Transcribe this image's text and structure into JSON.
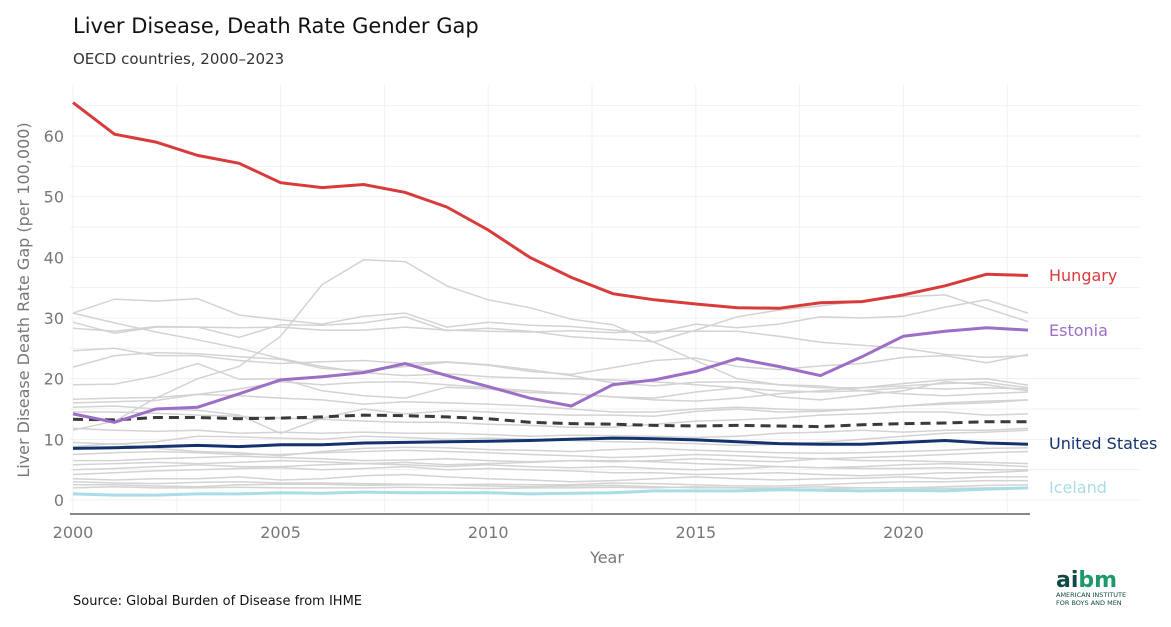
{
  "chart_data": {
    "type": "line",
    "title": "Liver Disease, Death Rate Gender Gap",
    "subtitle": "OECD countries, 2000–2023",
    "xlabel": "Year",
    "ylabel": "Liver Disease Death Rate Gap (per 100,000)",
    "xlim": [
      2000,
      2023
    ],
    "ylim": [
      -2.3,
      67
    ],
    "grid": true,
    "x_ticks": [
      "2000",
      "2005",
      "2010",
      "2015",
      "2020"
    ],
    "y_ticks": [
      "0",
      "10",
      "20",
      "30",
      "40",
      "50",
      "60"
    ],
    "x": [
      2000,
      2001,
      2002,
      2003,
      2004,
      2005,
      2006,
      2007,
      2008,
      2009,
      2010,
      2011,
      2012,
      2013,
      2014,
      2015,
      2016,
      2017,
      2018,
      2019,
      2020,
      2021,
      2022,
      2023
    ],
    "highlighted_series": [
      {
        "name": "Hungary",
        "color": "#d93b3b",
        "values": [
          65.5,
          60.3,
          59.0,
          56.8,
          55.5,
          52.3,
          51.5,
          52.0,
          50.7,
          48.3,
          44.5,
          40.0,
          36.7,
          34.0,
          33.0,
          32.3,
          31.7,
          31.6,
          32.5,
          32.7,
          33.8,
          35.3,
          37.2,
          37.0
        ]
      },
      {
        "name": "Estonia",
        "color": "#9b6fc6",
        "values": [
          14.2,
          12.8,
          15.0,
          15.3,
          17.5,
          19.8,
          20.3,
          21.0,
          22.5,
          20.5,
          18.7,
          16.8,
          15.5,
          19.0,
          19.8,
          21.2,
          23.3,
          22.0,
          20.5,
          23.6,
          27.0,
          27.8,
          28.4,
          28.0
        ]
      },
      {
        "name": "United States",
        "color": "#13336e",
        "values": [
          8.5,
          8.6,
          8.8,
          9.0,
          8.8,
          9.1,
          9.1,
          9.4,
          9.5,
          9.6,
          9.7,
          9.8,
          10.0,
          10.2,
          10.1,
          9.9,
          9.6,
          9.3,
          9.2,
          9.2,
          9.5,
          9.8,
          9.4,
          9.2
        ]
      },
      {
        "name": "Iceland",
        "color": "#a8dde8",
        "values": [
          1.0,
          0.8,
          0.8,
          1.0,
          1.0,
          1.2,
          1.1,
          1.3,
          1.2,
          1.2,
          1.2,
          1.0,
          1.1,
          1.2,
          1.5,
          1.5,
          1.5,
          1.7,
          1.6,
          1.5,
          1.6,
          1.5,
          1.8,
          2.0
        ]
      }
    ],
    "average_series": {
      "color": "#3a3a3a",
      "style": "dashed",
      "values": [
        13.3,
        13.2,
        13.6,
        13.6,
        13.4,
        13.5,
        13.7,
        14.0,
        13.9,
        13.7,
        13.4,
        12.8,
        12.6,
        12.5,
        12.3,
        12.2,
        12.3,
        12.2,
        12.1,
        12.4,
        12.6,
        12.7,
        12.9,
        12.9
      ]
    },
    "background_series_color": "#d3d3d3",
    "background_series": [
      [
        30.8,
        33.1,
        32.8,
        33.2,
        30.5,
        29.7,
        29.0,
        30.3,
        30.8,
        28.5,
        29.3,
        28.8,
        28.6,
        28.0,
        27.5,
        29.0,
        28.4,
        29.0,
        30.2,
        30.0,
        30.3,
        31.8,
        33.0,
        30.8
      ],
      [
        30.8,
        29.2,
        27.7,
        26.4,
        25.0,
        23.3,
        22.0,
        21.0,
        20.5,
        20.8,
        20.3,
        20.1,
        20.0,
        19.8,
        19.5,
        19.0,
        18.5,
        18.0,
        17.8,
        18.0,
        18.5,
        18.3,
        18.5,
        18.3
      ],
      [
        29.3,
        27.5,
        28.5,
        28.5,
        26.8,
        28.9,
        28.8,
        29.2,
        30.2,
        27.9,
        28.3,
        27.8,
        26.9,
        26.5,
        26.1,
        28.0,
        30.2,
        31.3,
        32.0,
        32.8,
        33.5,
        33.8,
        31.6,
        29.4
      ],
      [
        28.3,
        27.8,
        28.6,
        28.5,
        28.4,
        28.5,
        28.0,
        28.0,
        28.5,
        28.0,
        27.8,
        27.7,
        27.9,
        27.6,
        27.8,
        27.8,
        27.8,
        27.0,
        26.0,
        25.5,
        25.0,
        24.0,
        23.5,
        23.8
      ],
      [
        24.6,
        25.0,
        23.8,
        23.8,
        23.0,
        22.5,
        22.8,
        23.0,
        22.5,
        22.8,
        22.3,
        21.5,
        20.5,
        19.3,
        18.8,
        19.4,
        19.5,
        19.0,
        18.5,
        18.5,
        18.8,
        19.2,
        19.4,
        18.5
      ],
      [
        21.9,
        23.8,
        24.3,
        24.1,
        23.6,
        23.2,
        21.7,
        21.3,
        22.0,
        22.7,
        22.2,
        21.2,
        20.7,
        21.8,
        23.0,
        23.4,
        22.0,
        21.5,
        22.1,
        22.5,
        23.5,
        23.8,
        22.6,
        24.0
      ],
      [
        19.0,
        19.1,
        20.4,
        22.5,
        19.9,
        20.0,
        18.0,
        17.2,
        16.8,
        18.6,
        18.3,
        17.7,
        17.5,
        17.0,
        16.8,
        17.8,
        18.5,
        17.0,
        16.5,
        17.3,
        18.0,
        19.5,
        19.0,
        18.0
      ],
      [
        16.6,
        16.8,
        16.9,
        17.4,
        18.3,
        19.5,
        19.0,
        19.4,
        19.5,
        19.0,
        18.5,
        18.0,
        17.5,
        17.0,
        16.5,
        16.3,
        16.8,
        17.5,
        18.0,
        18.5,
        19.2,
        19.8,
        20.0,
        18.9
      ],
      [
        16.0,
        16.2,
        16.4,
        17.4,
        17.2,
        16.8,
        16.5,
        15.8,
        16.2,
        16.0,
        15.8,
        15.5,
        15.0,
        14.5,
        14.5,
        15.0,
        15.3,
        15.0,
        14.8,
        15.0,
        15.5,
        16.0,
        16.3,
        16.5
      ],
      [
        11.5,
        13.0,
        16.8,
        20.0,
        22.0,
        27.0,
        35.5,
        39.6,
        39.3,
        35.3,
        33.0,
        31.7,
        29.8,
        28.9,
        26.0,
        23.0,
        20.0,
        19.0,
        18.8,
        18.0,
        17.5,
        17.2,
        17.5,
        17.8
      ],
      [
        15.3,
        15.5,
        15.0,
        14.8,
        14.0,
        11.0,
        13.5,
        15.0,
        14.2,
        14.7,
        14.5,
        14.2,
        14.0,
        14.0,
        13.8,
        14.6,
        15.0,
        14.5,
        14.6,
        15.0,
        15.5,
        15.8,
        16.0,
        16.5
      ],
      [
        14.5,
        14.5,
        14.3,
        14.0,
        13.8,
        13.5,
        13.3,
        13.0,
        12.8,
        12.8,
        12.5,
        12.3,
        12.0,
        12.0,
        12.5,
        13.0,
        13.2,
        13.5,
        14.0,
        14.2,
        14.5,
        14.5,
        14.0,
        14.2
      ],
      [
        11.8,
        11.5,
        11.3,
        11.5,
        11.0,
        11.2,
        11.0,
        11.2,
        11.0,
        11.0,
        10.8,
        10.5,
        10.7,
        10.6,
        10.5,
        10.3,
        10.5,
        11.0,
        11.2,
        11.5,
        11.2,
        11.5,
        11.5,
        11.8
      ],
      [
        9.5,
        9.2,
        9.6,
        10.5,
        10.4,
        10.2,
        10.0,
        10.5,
        10.3,
        10.0,
        10.2,
        10.0,
        9.8,
        9.6,
        9.5,
        9.3,
        9.0,
        9.2,
        9.5,
        10.0,
        10.5,
        11.0,
        11.2,
        11.5
      ],
      [
        8.8,
        9.3,
        8.5,
        8.0,
        7.8,
        7.3,
        8.0,
        8.5,
        8.7,
        8.6,
        8.3,
        8.2,
        8.0,
        8.3,
        8.5,
        8.2,
        8.0,
        7.8,
        7.7,
        7.8,
        8.0,
        8.2,
        8.5,
        8.6
      ],
      [
        7.5,
        7.8,
        8.0,
        7.8,
        7.5,
        7.5,
        7.8,
        8.0,
        8.2,
        8.0,
        7.8,
        7.5,
        7.3,
        7.0,
        7.2,
        7.5,
        7.3,
        7.0,
        6.8,
        6.5,
        6.5,
        6.3,
        6.2,
        6.0
      ],
      [
        6.5,
        6.5,
        6.8,
        7.0,
        7.2,
        7.0,
        6.8,
        6.5,
        6.6,
        6.8,
        6.5,
        6.3,
        6.5,
        6.5,
        6.3,
        6.0,
        5.8,
        5.5,
        5.3,
        5.2,
        5.2,
        5.3,
        5.0,
        5.0
      ],
      [
        5.8,
        6.0,
        6.2,
        6.0,
        6.2,
        6.5,
        6.3,
        6.0,
        6.2,
        5.8,
        6.0,
        6.2,
        6.5,
        6.3,
        6.5,
        6.8,
        6.5,
        6.3,
        6.8,
        7.0,
        7.2,
        7.5,
        7.8,
        8.0
      ],
      [
        5.0,
        5.2,
        5.5,
        5.8,
        5.5,
        5.5,
        5.8,
        6.0,
        5.8,
        5.5,
        5.8,
        5.5,
        5.3,
        5.5,
        5.2,
        5.0,
        5.2,
        5.5,
        5.3,
        5.5,
        5.8,
        6.0,
        5.8,
        5.5
      ],
      [
        4.2,
        4.5,
        4.8,
        5.0,
        5.2,
        5.3,
        5.0,
        5.2,
        5.5,
        5.0,
        5.2,
        5.0,
        4.8,
        4.5,
        4.5,
        4.2,
        4.3,
        4.5,
        4.2,
        4.0,
        4.2,
        4.5,
        4.5,
        4.8
      ],
      [
        3.5,
        3.3,
        3.5,
        3.5,
        3.8,
        3.3,
        3.5,
        4.0,
        4.2,
        3.8,
        3.5,
        3.3,
        3.0,
        3.2,
        3.5,
        3.8,
        3.5,
        3.3,
        3.5,
        3.6,
        3.8,
        3.5,
        3.8,
        3.8
      ],
      [
        3.0,
        2.8,
        2.7,
        2.9,
        3.0,
        2.8,
        2.8,
        2.7,
        2.6,
        2.5,
        2.6,
        2.5,
        2.5,
        2.8,
        2.7,
        2.5,
        2.3,
        2.3,
        2.5,
        2.8,
        3.0,
        3.0,
        3.2,
        3.2
      ],
      [
        2.5,
        2.5,
        2.3,
        2.2,
        2.5,
        2.6,
        2.6,
        2.4,
        2.5,
        2.5,
        2.3,
        2.2,
        2.3,
        2.4,
        2.2,
        2.0,
        2.0,
        2.0,
        2.2,
        2.0,
        2.0,
        2.2,
        2.4,
        2.5
      ],
      [
        2.0,
        2.2,
        2.0,
        2.0,
        2.1,
        2.0,
        2.0,
        2.0,
        2.1,
        2.0,
        1.9,
        2.0,
        2.0,
        2.1,
        2.0,
        2.2,
        2.0,
        1.8,
        1.8,
        2.0,
        2.0,
        1.9,
        2.0,
        2.0
      ]
    ],
    "source": "Source: Global Burden of Disease from IHME"
  },
  "logo": {
    "wordmark": "aibm",
    "name_line1": "AMERICAN INSTITUTE",
    "name_line2": "FOR BOYS AND MEN",
    "dark_color": "#0f4a45",
    "accent_color": "#1d9a6c"
  }
}
